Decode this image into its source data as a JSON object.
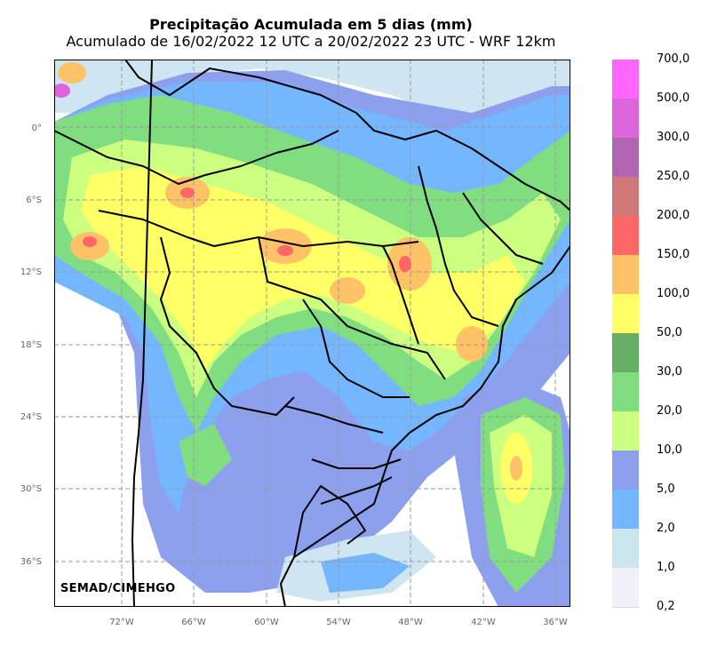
{
  "title": "Precipitação Acumulada em 5 dias (mm)",
  "subtitle": "Acumulado de 16/02/2022 12 UTC a 20/02/2022 23 UTC - WRF 12km",
  "lat_labels": [
    "0°",
    "6°S",
    "12°S",
    "18°S",
    "24°S",
    "30°S",
    "36°S"
  ],
  "lon_labels": [
    "72°W",
    "66°W",
    "60°W",
    "54°W",
    "48°W",
    "42°W",
    "36°W"
  ],
  "colorbar": {
    "labels": [
      "700,0",
      "500,0",
      "300,0",
      "250,0",
      "200,0",
      "150,0",
      "100,0",
      "50,0",
      "30,0",
      "20,0",
      "10,0",
      "5,0",
      "2,0",
      "1,0",
      "0,2"
    ],
    "colors": [
      "#ff66ff",
      "#dd66dd",
      "#b066b0",
      "#d07878",
      "#ff6666",
      "#ffc266",
      "#ffff66",
      "#66b066",
      "#80dd80",
      "#ccff80",
      "#8da0ee",
      "#74b6ff",
      "#cce6f0",
      "#eef0fa"
    ]
  },
  "credit": "SEMAD/CIMEHGO"
}
